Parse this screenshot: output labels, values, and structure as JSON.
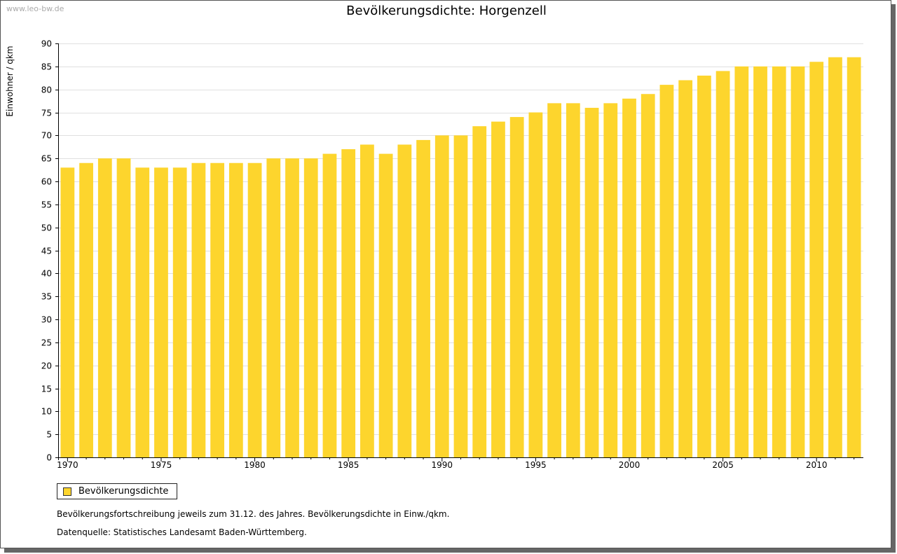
{
  "watermark": "www.leo-bw.de",
  "colors": {
    "bar": "#FDD52D",
    "grid": "#e0e0e0",
    "axis": "#000000"
  },
  "legend": {
    "label": "Bevölkerungsdichte"
  },
  "notes": {
    "line1": "Bevölkerungsfortschreibung jeweils zum 31.12. des Jahres. Bevölkerungsdichte in Einw./qkm.",
    "line2": "Datenquelle: Statistisches Landesamt Baden-Württemberg."
  },
  "chart_data": {
    "type": "bar",
    "title": "Bevölkerungsdichte: Horgenzell",
    "xlabel": "",
    "ylabel": "Einwohner / qkm",
    "ylim": [
      0,
      90
    ],
    "ytick_step": 5,
    "xtick_labels": [
      "1970",
      "1975",
      "1980",
      "1985",
      "1990",
      "1995",
      "2000",
      "2005",
      "2010"
    ],
    "categories": [
      1970,
      1971,
      1972,
      1973,
      1974,
      1975,
      1976,
      1977,
      1978,
      1979,
      1980,
      1981,
      1982,
      1983,
      1984,
      1985,
      1986,
      1987,
      1988,
      1989,
      1990,
      1991,
      1992,
      1993,
      1994,
      1995,
      1996,
      1997,
      1998,
      1999,
      2000,
      2001,
      2002,
      2003,
      2004,
      2005,
      2006,
      2007,
      2008,
      2009,
      2010,
      2011,
      2012
    ],
    "series": [
      {
        "name": "Bevölkerungsdichte",
        "values": [
          63,
          64,
          65,
          65,
          63,
          63,
          63,
          64,
          64,
          64,
          64,
          65,
          65,
          65,
          66,
          67,
          68,
          66,
          68,
          69,
          70,
          70,
          72,
          73,
          74,
          75,
          77,
          77,
          76,
          77,
          78,
          79,
          81,
          82,
          83,
          84,
          85,
          85,
          85,
          85,
          86,
          87,
          87
        ]
      }
    ],
    "grid": true,
    "legend_position": "bottom-left"
  }
}
